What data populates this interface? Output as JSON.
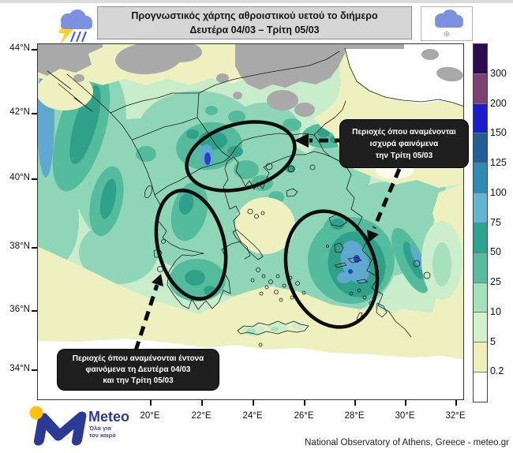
{
  "header": {
    "title_line1": "Προγνωστικός χάρτης αθροιστικού υετού το διήμερο",
    "title_line2": "Δευτέρα 04/03 – Τρίτη 05/03",
    "left_icon": "thunderstorm-rain-cloud",
    "right_icon": "snow-cloud"
  },
  "map": {
    "lat_labels": [
      "44°N",
      "42°N",
      "40°N",
      "38°N",
      "36°N",
      "34°N"
    ],
    "lon_labels": [
      "20°E",
      "22°E",
      "24°E",
      "26°E",
      "28°E",
      "30°E",
      "32°E"
    ]
  },
  "annotations": {
    "north_box": {
      "lines": [
        "Περιοχές όπου αναμένονται",
        "ισχυρά φαινόμενα",
        "την Τρίτη 05/03"
      ]
    },
    "south_box": {
      "lines": [
        "Περιοχές όπου αναμένονται έντονα",
        "φαινόμενα τη Δευτέρα 04/03",
        "και την Τρίτη 05/03"
      ]
    }
  },
  "legend": {
    "tick_labels": [
      "300",
      "200",
      "150",
      "125",
      "100",
      "75",
      "50",
      "25",
      "10",
      "5",
      "0.2"
    ],
    "colors_top_to_bottom": [
      "#2d0a51",
      "#7c4273",
      "#1c1ccc",
      "#1f5f96",
      "#2e8cb4",
      "#62b4d2",
      "#2aa391",
      "#58bd9e",
      "#a2e2b8",
      "#d2f2cd",
      "#eef0bc",
      "#ffffff"
    ]
  },
  "logo": {
    "brand": "Meteo",
    "slogan_line1": "Όλα για",
    "slogan_line2": "τον καιρό"
  },
  "footer": {
    "credit": "National Observatory of Athens, Greece - meteo.gr"
  },
  "colors": {
    "header_bg": "#d6d6d6",
    "annotation_bg": "#1e1e1e",
    "logo_blue": "#2b3a94",
    "logo_yellow": "#ffc20e",
    "cloud_blue": "#7d90e2",
    "no_data_gray": "#a9a9a9"
  }
}
